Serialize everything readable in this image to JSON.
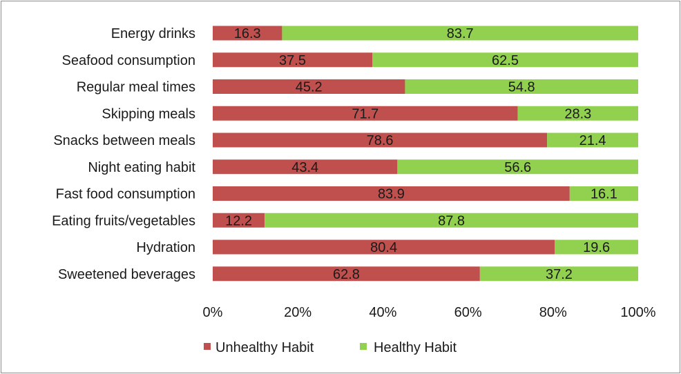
{
  "chart_data": {
    "type": "bar",
    "orientation": "horizontal",
    "stacked": true,
    "categories": [
      "Energy drinks",
      "Seafood consumption",
      "Regular meal times",
      "Skipping meals",
      "Snacks between meals",
      "Night eating habit",
      "Fast food consumption",
      "Eating fruits/vegetables",
      "Hydration",
      "Sweetened beverages"
    ],
    "series": [
      {
        "name": "Unhealthy Habit",
        "color": "#c0504d",
        "values": [
          16.3,
          37.5,
          45.2,
          71.7,
          78.6,
          43.4,
          83.9,
          12.2,
          80.4,
          62.8
        ]
      },
      {
        "name": "Healthy  Habit",
        "color": "#92d050",
        "values": [
          83.7,
          62.5,
          54.8,
          28.3,
          21.4,
          56.6,
          16.1,
          87.8,
          19.6,
          37.2
        ]
      }
    ],
    "x_ticks": [
      "0%",
      "20%",
      "40%",
      "60%",
      "80%",
      "100%"
    ],
    "xlim": [
      0,
      100
    ],
    "title": "",
    "xlabel": "",
    "ylabel": "",
    "grid": false,
    "legend": "bottom-center"
  }
}
